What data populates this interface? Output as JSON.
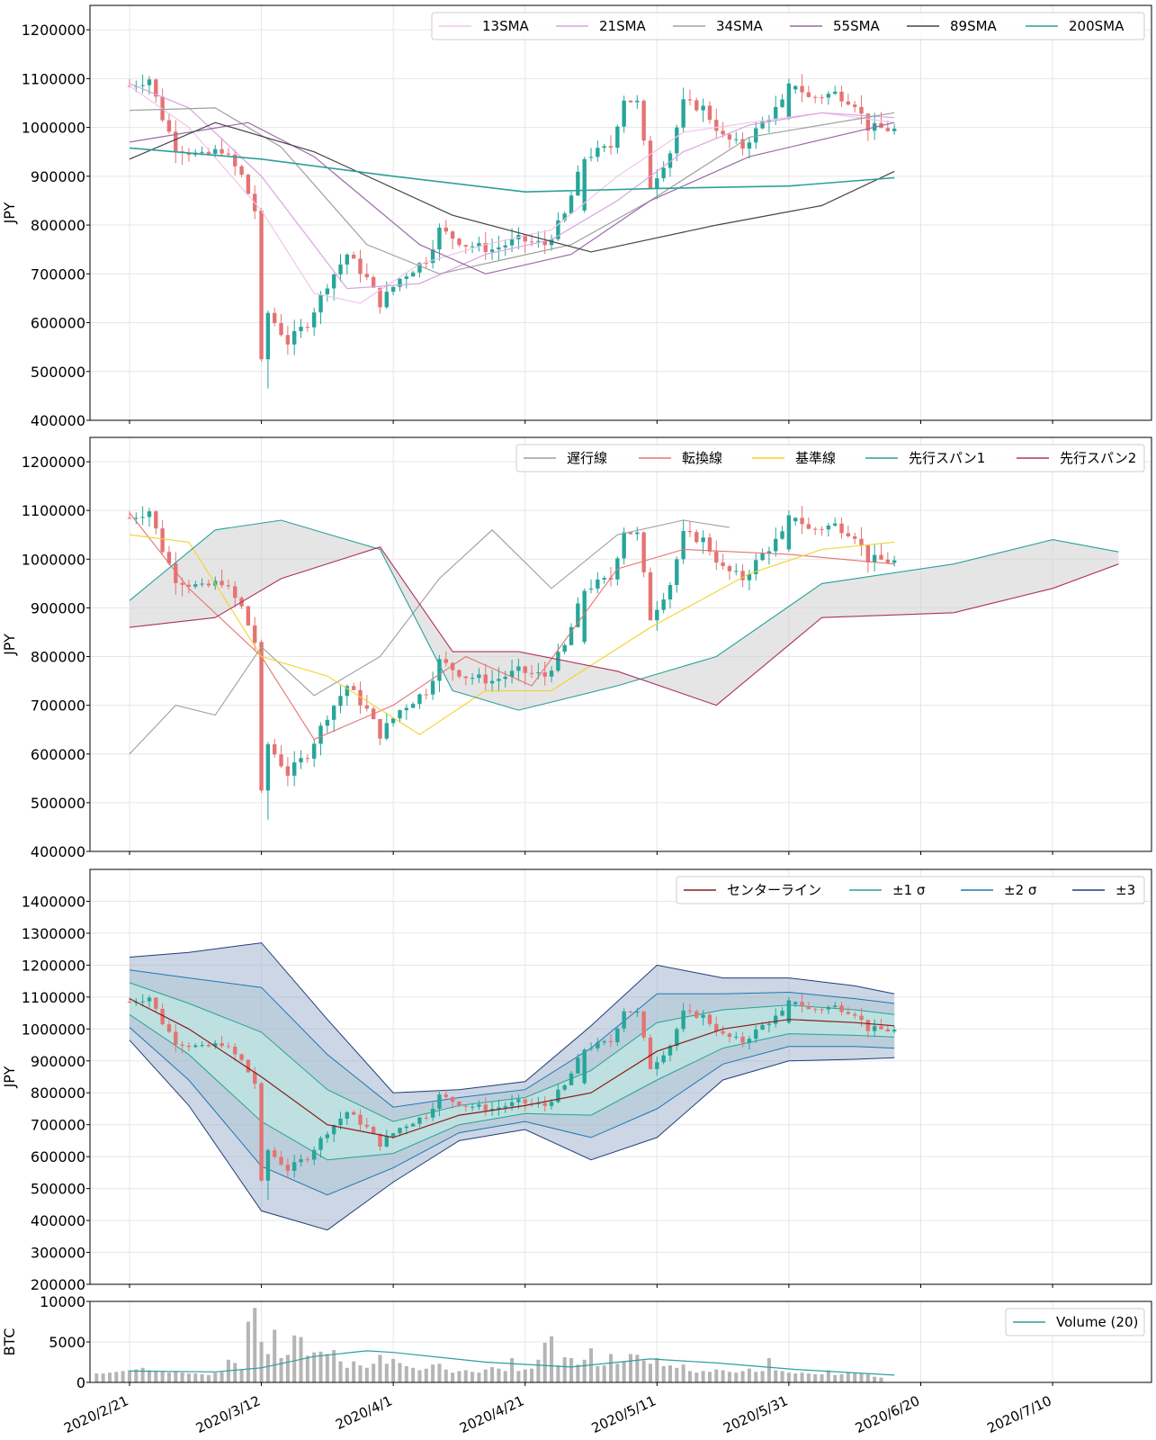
{
  "x_ticks": [
    "2020/2/21",
    "2020/3/12",
    "2020/4/1",
    "2020/4/21",
    "2020/5/11",
    "2020/5/31",
    "2020/6/20",
    "2020/7/10"
  ],
  "colors": {
    "up": "#26a69a",
    "down": "#e57373",
    "grid": "#e6e6e6"
  },
  "chart_data": [
    {
      "type": "line",
      "panel": "price-sma",
      "ylabel": "JPY",
      "ylim": [
        400000,
        1250000
      ],
      "yticks": [
        400000,
        500000,
        600000,
        700000,
        800000,
        900000,
        1000000,
        1100000,
        1200000
      ],
      "legend_position": "top-right",
      "legend": [
        {
          "name": "13SMA",
          "color": "#f2c4ec"
        },
        {
          "name": "21SMA",
          "color": "#d9a3e0"
        },
        {
          "name": "34SMA",
          "color": "#a0a0a0"
        },
        {
          "name": "55SMA",
          "color": "#9a6aa8"
        },
        {
          "name": "89SMA",
          "color": "#444444"
        },
        {
          "name": "200SMA",
          "color": "#2aa198"
        }
      ],
      "series": [
        {
          "name": "13SMA",
          "x": [
            "2020/2/21",
            "2020/3/1",
            "2020/3/12",
            "2020/3/20",
            "2020/3/27",
            "2020/4/5",
            "2020/4/15",
            "2020/4/25",
            "2020/5/5",
            "2020/5/15",
            "2020/5/25",
            "2020/6/5",
            "2020/6/16"
          ],
          "values": [
            1085000,
            1000000,
            830000,
            660000,
            640000,
            720000,
            760000,
            790000,
            900000,
            990000,
            1010000,
            1030000,
            1010000
          ]
        },
        {
          "name": "21SMA",
          "x": [
            "2020/2/21",
            "2020/3/1",
            "2020/3/12",
            "2020/3/25",
            "2020/4/5",
            "2020/4/15",
            "2020/4/25",
            "2020/5/5",
            "2020/5/15",
            "2020/5/25",
            "2020/6/5",
            "2020/6/16"
          ],
          "values": [
            1090000,
            1040000,
            900000,
            670000,
            680000,
            740000,
            770000,
            850000,
            950000,
            1005000,
            1030000,
            1020000
          ]
        },
        {
          "name": "34SMA",
          "x": [
            "2020/2/21",
            "2020/3/5",
            "2020/3/15",
            "2020/3/28",
            "2020/4/8",
            "2020/4/18",
            "2020/4/28",
            "2020/5/10",
            "2020/5/25",
            "2020/6/16"
          ],
          "values": [
            1035000,
            1040000,
            960000,
            760000,
            700000,
            730000,
            760000,
            850000,
            980000,
            1030000
          ]
        },
        {
          "name": "55SMA",
          "x": [
            "2020/2/21",
            "2020/3/10",
            "2020/3/20",
            "2020/4/5",
            "2020/4/15",
            "2020/4/28",
            "2020/5/10",
            "2020/5/25",
            "2020/6/16"
          ],
          "values": [
            970000,
            1010000,
            940000,
            760000,
            700000,
            740000,
            850000,
            940000,
            1010000
          ]
        },
        {
          "name": "89SMA",
          "x": [
            "2020/2/21",
            "2020/3/5",
            "2020/3/20",
            "2020/4/10",
            "2020/5/1",
            "2020/5/20",
            "2020/6/5",
            "2020/6/16"
          ],
          "values": [
            935000,
            1010000,
            950000,
            820000,
            745000,
            800000,
            840000,
            910000
          ]
        },
        {
          "name": "200SMA",
          "x": [
            "2020/2/21",
            "2020/3/12",
            "2020/4/1",
            "2020/4/21",
            "2020/5/11",
            "2020/5/31",
            "2020/6/16"
          ],
          "values": [
            958000,
            935000,
            900000,
            868000,
            875000,
            880000,
            897000
          ]
        }
      ]
    },
    {
      "type": "line",
      "panel": "ichimoku",
      "ylabel": "JPY",
      "ylim": [
        400000,
        1250000
      ],
      "yticks": [
        400000,
        500000,
        600000,
        700000,
        800000,
        900000,
        1000000,
        1100000,
        1200000
      ],
      "legend_position": "top-right",
      "legend": [
        {
          "name": "遅行線",
          "color": "#9e9e9e"
        },
        {
          "name": "転換線",
          "color": "#e57373"
        },
        {
          "name": "基準線",
          "color": "#f2d32c"
        },
        {
          "name": "先行スパン1",
          "color": "#2aa198"
        },
        {
          "name": "先行スパン2",
          "color": "#b03060"
        }
      ],
      "series": [
        {
          "name": "遅行線",
          "x": [
            "2020/2/21",
            "2020/2/28",
            "2020/3/5",
            "2020/3/12",
            "2020/3/20",
            "2020/3/30",
            "2020/4/8",
            "2020/4/16",
            "2020/4/25",
            "2020/5/5",
            "2020/5/15",
            "2020/5/22"
          ],
          "values": [
            600000,
            700000,
            680000,
            820000,
            720000,
            800000,
            960000,
            1060000,
            940000,
            1050000,
            1080000,
            1065000
          ]
        },
        {
          "name": "転換線",
          "x": [
            "2020/2/21",
            "2020/3/1",
            "2020/3/12",
            "2020/3/20",
            "2020/4/1",
            "2020/4/12",
            "2020/4/22",
            "2020/5/5",
            "2020/5/15",
            "2020/5/31",
            "2020/6/16"
          ],
          "values": [
            1095000,
            940000,
            800000,
            630000,
            700000,
            800000,
            740000,
            980000,
            1020000,
            1010000,
            990000
          ]
        },
        {
          "name": "基準線",
          "x": [
            "2020/2/21",
            "2020/3/1",
            "2020/3/12",
            "2020/3/22",
            "2020/4/5",
            "2020/4/15",
            "2020/4/25",
            "2020/5/10",
            "2020/5/25",
            "2020/6/5",
            "2020/6/16"
          ],
          "values": [
            1050000,
            1035000,
            800000,
            760000,
            640000,
            730000,
            730000,
            860000,
            970000,
            1020000,
            1035000
          ]
        },
        {
          "name": "先行スパン1",
          "x": [
            "2020/2/21",
            "2020/3/5",
            "2020/3/15",
            "2020/3/30",
            "2020/4/10",
            "2020/4/20",
            "2020/5/5",
            "2020/5/20",
            "2020/6/5",
            "2020/6/25",
            "2020/7/10",
            "2020/7/20"
          ],
          "values": [
            915000,
            1060000,
            1080000,
            1020000,
            730000,
            690000,
            740000,
            800000,
            950000,
            990000,
            1040000,
            1015000
          ]
        },
        {
          "name": "先行スパン2",
          "x": [
            "2020/2/21",
            "2020/3/5",
            "2020/3/15",
            "2020/3/30",
            "2020/4/10",
            "2020/4/20",
            "2020/5/5",
            "2020/5/20",
            "2020/6/5",
            "2020/6/25",
            "2020/7/10",
            "2020/7/20"
          ],
          "values": [
            860000,
            880000,
            960000,
            1025000,
            810000,
            810000,
            770000,
            700000,
            880000,
            890000,
            940000,
            990000
          ]
        }
      ]
    },
    {
      "type": "line",
      "panel": "bollinger",
      "ylabel": "JPY",
      "ylim": [
        200000,
        1500000
      ],
      "yticks": [
        200000,
        300000,
        400000,
        500000,
        600000,
        700000,
        800000,
        900000,
        1000000,
        1100000,
        1200000,
        1300000,
        1400000
      ],
      "legend_position": "top-right",
      "legend": [
        {
          "name": "センターライン",
          "color": "#8b1a1a"
        },
        {
          "name": "±1 σ",
          "color": "#2aa198"
        },
        {
          "name": "±2 σ",
          "color": "#1f77b4"
        },
        {
          "name": "±3",
          "color": "#1f3f7a"
        }
      ],
      "band_x": [
        "2020/2/21",
        "2020/3/1",
        "2020/3/12",
        "2020/3/22",
        "2020/4/1",
        "2020/4/11",
        "2020/4/21",
        "2020/5/1",
        "2020/5/11",
        "2020/5/21",
        "2020/5/31",
        "2020/6/10",
        "2020/6/16"
      ],
      "center": [
        1095000,
        1000000,
        850000,
        700000,
        660000,
        730000,
        760000,
        800000,
        930000,
        1000000,
        1030000,
        1020000,
        1010000
      ],
      "sigma1": [
        50000,
        80000,
        140000,
        110000,
        50000,
        30000,
        25000,
        70000,
        90000,
        60000,
        45000,
        40000,
        35000
      ],
      "sigma2": [
        90000,
        160000,
        280000,
        220000,
        95000,
        55000,
        50000,
        140000,
        180000,
        110000,
        85000,
        75000,
        70000
      ],
      "sigma3": [
        130000,
        240000,
        420000,
        330000,
        140000,
        80000,
        75000,
        210000,
        270000,
        160000,
        130000,
        115000,
        100000
      ]
    },
    {
      "type": "bar",
      "panel": "volume",
      "ylabel": "BTC",
      "ylim": [
        0,
        10000
      ],
      "yticks": [
        0,
        5000,
        10000
      ],
      "legend_position": "top-right",
      "legend": [
        {
          "name": "Volume (20)",
          "color": "#2aa198"
        }
      ],
      "bar_values": [
        1100,
        1100,
        1200,
        1300,
        1400,
        1500,
        1600,
        1800,
        1500,
        1400,
        1300,
        1200,
        1300,
        1200,
        1100,
        1100,
        1000,
        900,
        1200,
        1300,
        2800,
        2400,
        1600,
        7500,
        9200,
        5000,
        3500,
        6500,
        3000,
        3400,
        5800,
        5600,
        3300,
        3700,
        3800,
        3500,
        4000,
        2600,
        1800,
        2600,
        2100,
        1800,
        2300,
        3400,
        2300,
        2900,
        2400,
        2000,
        1800,
        1500,
        1700,
        2200,
        2300,
        1600,
        1200,
        1400,
        1500,
        1300,
        1200,
        1600,
        1900,
        1700,
        1400,
        3000,
        1400,
        1600,
        1700,
        2800,
        4900,
        5700,
        2100,
        3100,
        3000,
        2200,
        2800,
        4200,
        2000,
        2100,
        3500,
        2300,
        2600,
        3500,
        3400,
        2700,
        2300,
        3000,
        2000,
        2100,
        1800,
        2200,
        1400,
        1200,
        1400,
        1300,
        1600,
        1500,
        1300,
        1200,
        1400,
        1700,
        1300,
        1400,
        3000,
        1500,
        1400,
        1200,
        1100,
        1200,
        1100,
        1000,
        1000,
        1500,
        900,
        1000,
        1300,
        1100,
        1100,
        1000,
        700,
        600
      ],
      "ma_x": [
        "2020/2/21",
        "2020/3/5",
        "2020/3/12",
        "2020/3/20",
        "2020/3/28",
        "2020/4/1",
        "2020/4/15",
        "2020/4/28",
        "2020/5/10",
        "2020/5/20",
        "2020/6/1",
        "2020/6/16"
      ],
      "ma_values": [
        1400,
        1300,
        1800,
        3200,
        3900,
        3700,
        2500,
        1900,
        2900,
        2400,
        1600,
        900
      ]
    }
  ]
}
